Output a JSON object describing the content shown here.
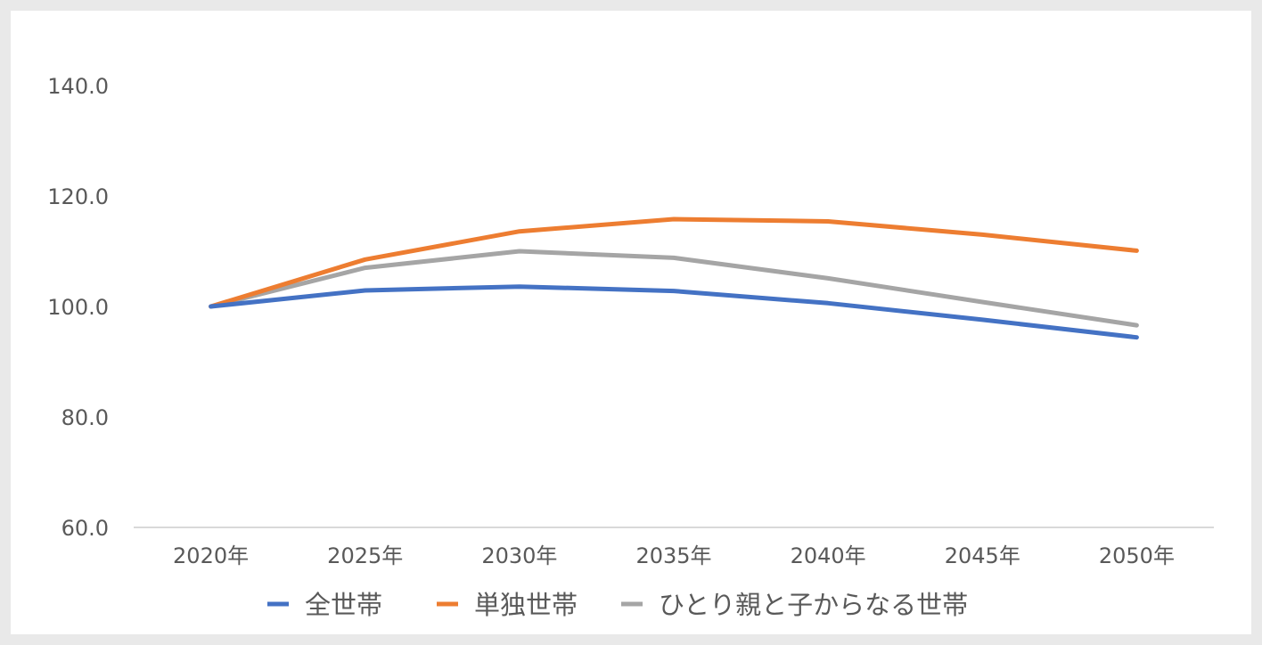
{
  "chart_data": {
    "type": "line",
    "title": "",
    "xlabel": "",
    "ylabel": "",
    "categories": [
      "2020年",
      "2025年",
      "2030年",
      "2035年",
      "2040年",
      "2045年",
      "2050年"
    ],
    "y_ticks": [
      "140.0",
      "120.0",
      "100.0",
      "80.0",
      "60.0"
    ],
    "ylim": [
      60,
      140
    ],
    "grid": false,
    "legend_position": "bottom",
    "series": [
      {
        "name": "全世帯",
        "color": "#4472c4",
        "values": [
          100.0,
          102.9,
          103.6,
          102.8,
          100.6,
          97.6,
          94.4
        ]
      },
      {
        "name": "単独世帯",
        "color": "#ed7d31",
        "values": [
          100.0,
          108.5,
          113.6,
          115.8,
          115.4,
          113.0,
          110.1
        ]
      },
      {
        "name": "ひとり親と子からなる世帯",
        "color": "#a5a5a5",
        "values": [
          100.0,
          107.0,
          110.0,
          108.8,
          105.1,
          100.8,
          96.6
        ]
      }
    ]
  }
}
